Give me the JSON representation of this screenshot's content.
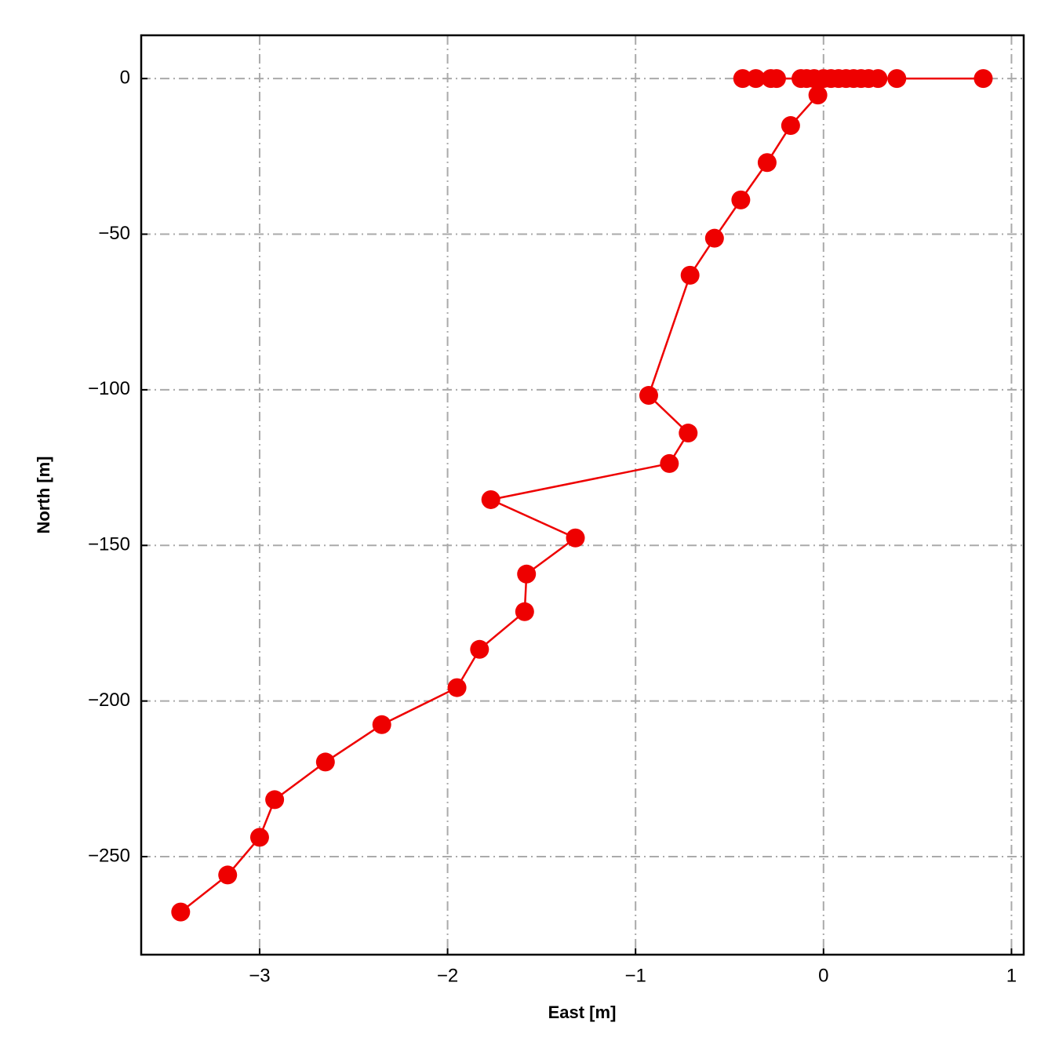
{
  "chart_data": {
    "type": "line",
    "xlabel": "East [m]",
    "ylabel": "North [m]",
    "color": "#ee0000",
    "grid": true,
    "markers": true,
    "x": [
      0.85,
      0.39,
      0.29,
      0.24,
      0.2,
      0.16,
      0.12,
      0.08,
      0.04,
      -0.43,
      -0.36,
      -0.28,
      -0.25,
      -0.12,
      -0.09,
      -0.05,
      0.0,
      -0.03,
      -0.175,
      -0.3,
      -0.44,
      -0.58,
      -0.71,
      -0.93,
      -0.72,
      -0.82,
      -1.77,
      -1.32,
      -1.58,
      -1.59,
      -1.83,
      -1.95,
      -2.35,
      -2.65,
      -2.92,
      -3.0,
      -3.17,
      -3.42
    ],
    "values": [
      0,
      0,
      0,
      0,
      0,
      0,
      0,
      0,
      0,
      0,
      0,
      0,
      0,
      0,
      0,
      0,
      0,
      -5.3,
      -15.1,
      -27,
      -39,
      -51.3,
      -63.2,
      -101.8,
      -113.9,
      -123.7,
      -135.3,
      -147.6,
      -159.2,
      -171.3,
      -183.4,
      -195.7,
      -207.6,
      -219.6,
      -231.7,
      -243.8,
      -255.9,
      -267.8
    ],
    "xlim": [
      -3.63,
      1.065
    ],
    "ylim": [
      -281.5,
      13.9
    ],
    "xticks": [
      {
        "value": -3,
        "label": "−3"
      },
      {
        "value": -2,
        "label": "−2"
      },
      {
        "value": -1,
        "label": "−1"
      },
      0,
      1
    ],
    "yticks": [
      {
        "value": -250,
        "label": "−250"
      },
      {
        "value": -200,
        "label": "−200"
      },
      {
        "value": -150,
        "label": "−150"
      },
      {
        "value": -100,
        "label": "−100"
      },
      {
        "value": -50,
        "label": "−50"
      },
      0
    ]
  }
}
